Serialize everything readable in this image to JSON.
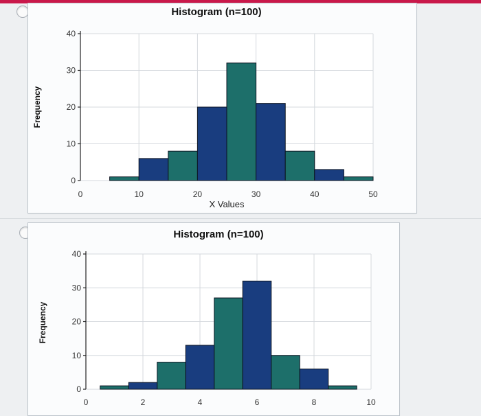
{
  "colors": {
    "dark_blue": "#193d7f",
    "teal": "#1d6f6a",
    "grid": "#d4d8dd",
    "accent_bar": "#c9184a"
  },
  "options": [
    {
      "radio_icon": "radio-unselected-icon"
    },
    {
      "radio_icon": "radio-unselected-icon"
    }
  ],
  "chart_data": [
    {
      "type": "bar",
      "title": "Histogram (n=100)",
      "xlabel": "X Values",
      "ylabel": "Frequency",
      "xlim": [
        0,
        50
      ],
      "ylim": [
        0,
        40
      ],
      "x_ticks": [
        "0",
        "10",
        "20",
        "30",
        "40",
        "50"
      ],
      "y_ticks": [
        "0",
        "10",
        "20",
        "30",
        "40"
      ],
      "grid": true,
      "bins": [
        {
          "start": 5,
          "end": 10,
          "value": 1,
          "color": "teal"
        },
        {
          "start": 10,
          "end": 15,
          "value": 6,
          "color": "dark_blue"
        },
        {
          "start": 15,
          "end": 20,
          "value": 8,
          "color": "teal"
        },
        {
          "start": 20,
          "end": 25,
          "value": 20,
          "color": "dark_blue"
        },
        {
          "start": 25,
          "end": 30,
          "value": 32,
          "color": "teal"
        },
        {
          "start": 30,
          "end": 35,
          "value": 21,
          "color": "dark_blue"
        },
        {
          "start": 35,
          "end": 40,
          "value": 8,
          "color": "teal"
        },
        {
          "start": 40,
          "end": 45,
          "value": 3,
          "color": "dark_blue"
        },
        {
          "start": 45,
          "end": 50,
          "value": 1,
          "color": "teal"
        }
      ]
    },
    {
      "type": "bar",
      "title": "Histogram (n=100)",
      "xlabel": "",
      "ylabel": "Frequency",
      "xlim": [
        0,
        10
      ],
      "ylim": [
        0,
        40
      ],
      "x_ticks": [
        "0",
        "2",
        "4",
        "6",
        "8",
        "10"
      ],
      "y_ticks": [
        "0",
        "10",
        "20",
        "30",
        "40"
      ],
      "grid": true,
      "bins": [
        {
          "start": 0.5,
          "end": 1.5,
          "value": 1,
          "color": "teal"
        },
        {
          "start": 1.5,
          "end": 2.5,
          "value": 2,
          "color": "dark_blue"
        },
        {
          "start": 2.5,
          "end": 3.5,
          "value": 8,
          "color": "teal"
        },
        {
          "start": 3.5,
          "end": 4.5,
          "value": 13,
          "color": "dark_blue"
        },
        {
          "start": 4.5,
          "end": 5.5,
          "value": 27,
          "color": "teal"
        },
        {
          "start": 5.5,
          "end": 6.5,
          "value": 32,
          "color": "dark_blue"
        },
        {
          "start": 6.5,
          "end": 7.5,
          "value": 10,
          "color": "teal"
        },
        {
          "start": 7.5,
          "end": 8.5,
          "value": 6,
          "color": "dark_blue"
        },
        {
          "start": 8.5,
          "end": 9.5,
          "value": 1,
          "color": "teal"
        }
      ]
    }
  ]
}
